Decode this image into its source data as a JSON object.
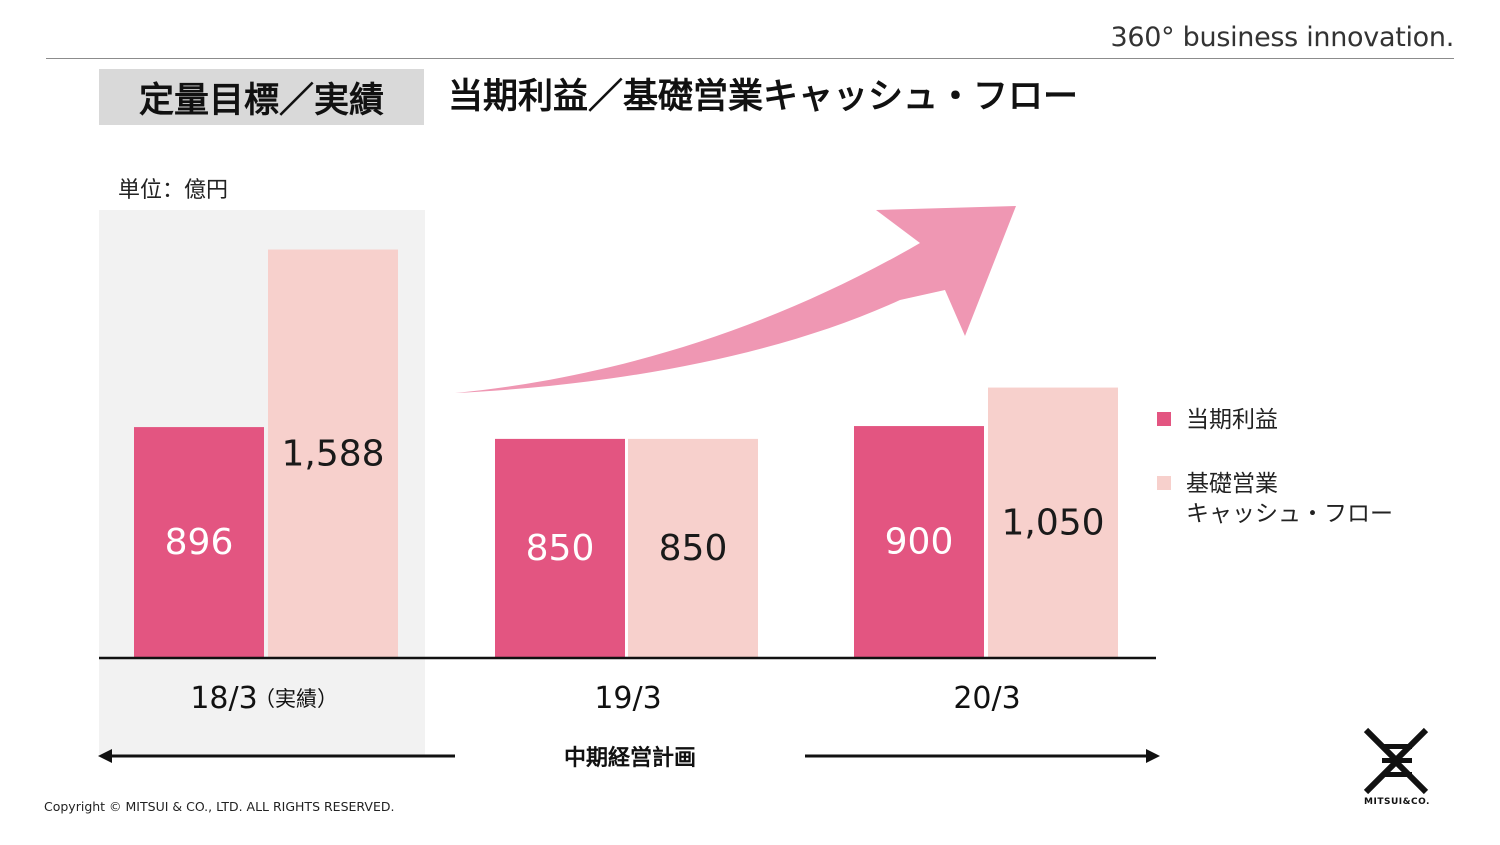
{
  "header": {
    "tagline": "360° business innovation.",
    "title_tag": "定量目標／実績",
    "title_main": "当期利益／基礎営業キャッシュ・フロー"
  },
  "unit_label": "単位：億円",
  "chart_data": {
    "type": "bar",
    "categories": [
      "18/3",
      "19/3",
      "20/3"
    ],
    "category_notes": [
      "（実績）",
      "",
      ""
    ],
    "series": [
      {
        "name": "当期利益",
        "values": [
          896,
          850,
          900
        ]
      },
      {
        "name": "基礎営業\nキャッシュ・フロー",
        "values": [
          1588,
          850,
          1050
        ]
      }
    ],
    "value_labels": [
      [
        "896",
        "850",
        "900"
      ],
      [
        "1,588",
        "850",
        "1,050"
      ]
    ],
    "ylim": [
      0,
      1800
    ],
    "grid": false,
    "legend": "right",
    "highlight_category": "18/3",
    "trend_arrow": true
  },
  "legend": {
    "items": [
      {
        "label": "当期利益",
        "color": "#e35581"
      },
      {
        "label": "基礎営業\nキャッシュ・フロー",
        "color": "#f7d0cc"
      }
    ]
  },
  "plan": {
    "label": "中期経営計画"
  },
  "colors": {
    "profit": "#e35581",
    "cashflow": "#f7d0cc",
    "arrow": "#ef97b3",
    "actual_band": "#f2f2f2",
    "title_box": "#d9d9d9"
  },
  "footer": {
    "copyright": "Copyright © MITSUI & CO., LTD. ALL RIGHTS RESERVED.",
    "logo_text": "MITSUI&CO."
  }
}
